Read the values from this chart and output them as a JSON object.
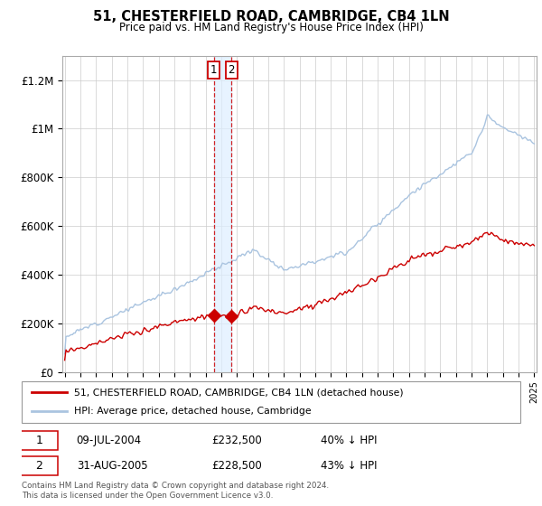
{
  "title": "51, CHESTERFIELD ROAD, CAMBRIDGE, CB4 1LN",
  "subtitle": "Price paid vs. HM Land Registry's House Price Index (HPI)",
  "ylim": [
    0,
    1300000
  ],
  "yticks": [
    0,
    200000,
    400000,
    600000,
    800000,
    1000000,
    1200000
  ],
  "ytick_labels": [
    "£0",
    "£200K",
    "£400K",
    "£600K",
    "£800K",
    "£1M",
    "£1.2M"
  ],
  "hpi_color": "#aac4e0",
  "price_color": "#cc0000",
  "grid_color": "#cccccc",
  "legend_label_price": "51, CHESTERFIELD ROAD, CAMBRIDGE, CB4 1LN (detached house)",
  "legend_label_hpi": "HPI: Average price, detached house, Cambridge",
  "transaction1_date": "09-JUL-2004",
  "transaction1_price": 232500,
  "transaction1_x": 2004.52,
  "transaction2_date": "31-AUG-2005",
  "transaction2_price": 228500,
  "transaction2_x": 2005.66,
  "footnote_line1": "Contains HM Land Registry data © Crown copyright and database right 2024.",
  "footnote_line2": "This data is licensed under the Open Government Licence v3.0."
}
